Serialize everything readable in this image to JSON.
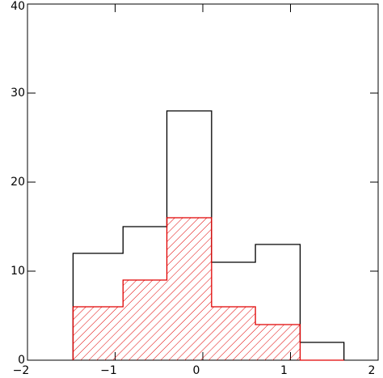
{
  "chart_data": {
    "type": "histogram",
    "bins": [
      -1.48,
      -0.91,
      -0.41,
      0.1,
      0.6,
      1.11,
      1.61
    ],
    "series": [
      {
        "color": "#000000",
        "values": [
          12,
          15,
          28,
          11,
          13,
          2
        ],
        "hatch": false
      },
      {
        "color": "#e00000",
        "values": [
          6,
          9,
          16,
          6,
          4,
          0
        ],
        "hatch": true
      }
    ],
    "xlim": [
      -2,
      2
    ],
    "xticks": [
      {
        "value": -2,
        "label": "−2"
      },
      {
        "value": -1,
        "label": "−1"
      },
      0,
      1,
      2
    ],
    "ylim": [
      0,
      40
    ],
    "yticks": [
      0,
      10,
      20,
      30,
      40
    ]
  }
}
